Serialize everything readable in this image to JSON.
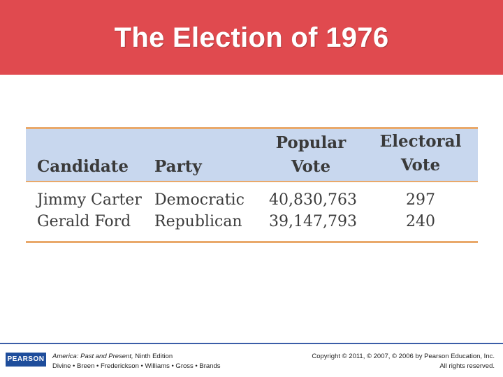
{
  "slide": {
    "title": "The Election of 1976"
  },
  "table": {
    "headers": {
      "candidate": "Candidate",
      "party": "Party",
      "popular_line1": "Popular",
      "popular_line2": "Vote",
      "electoral_line1": "Electoral",
      "electoral_line2": "Vote"
    },
    "rows": [
      {
        "candidate": "Jimmy Carter",
        "party": "Democratic",
        "popular_vote": "40,830,763",
        "electoral_vote": "297"
      },
      {
        "candidate": "Gerald Ford",
        "party": "Republican",
        "popular_vote": "39,147,793",
        "electoral_vote": "240"
      }
    ]
  },
  "footer": {
    "logo_text": "PEARSON",
    "book_title": "America: Past and Present,",
    "edition": " Ninth Edition",
    "authors": "Divine • Breen • Frederickson • Williams • Gross • Brands",
    "copyright": "Copyright © 2011, © 2007, © 2006 by Pearson Education, Inc.",
    "rights": "All rights reserved."
  },
  "colors": {
    "title_bar": "#e04a4f",
    "header_band": "#c8d7ee",
    "rule": "#e9a96b",
    "footer_rule": "#3b5ea8",
    "logo": "#1e4d9b"
  }
}
